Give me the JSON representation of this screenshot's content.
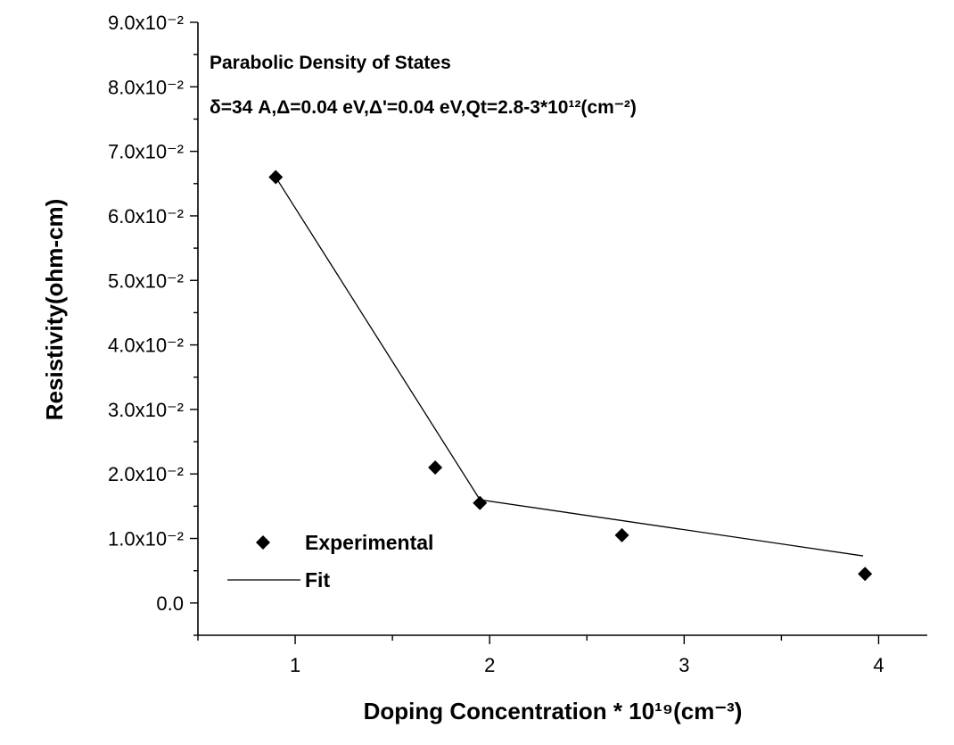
{
  "chart_data": {
    "type": "scatter",
    "annotations": [
      "Parabolic Density of States",
      "δ=34 A,Δ=0.04 eV,Δ'=0.04 eV,Qt=2.8-3*10¹²(cm⁻²)"
    ],
    "xlabel": "Doping Concentration * 10¹⁹(cm⁻³)",
    "ylabel": "Resistivity(ohm-cm)",
    "xlim": [
      0.5,
      4.25
    ],
    "ylim": [
      -0.005,
      0.09
    ],
    "x_ticks": [
      1,
      2,
      3,
      4
    ],
    "x_tick_labels": [
      "1",
      "2",
      "3",
      "4"
    ],
    "y_ticks": [
      0,
      0.01,
      0.02,
      0.03,
      0.04,
      0.05,
      0.06,
      0.07,
      0.08,
      0.09
    ],
    "y_tick_labels": [
      "0.0",
      "1.0x10⁻²",
      "2.0x10⁻²",
      "3.0x10⁻²",
      "4.0x10⁻²",
      "5.0x10⁻²",
      "6.0x10⁻²",
      "7.0x10⁻²",
      "8.0x10⁻²",
      "9.0x10⁻²"
    ],
    "grid": false,
    "legend": {
      "placement": "bottom-left"
    },
    "series": [
      {
        "name": "Experimental",
        "kind": "scatter",
        "marker": "diamond",
        "x": [
          0.9,
          1.72,
          1.95,
          2.68,
          3.93
        ],
        "y": [
          0.066,
          0.021,
          0.0155,
          0.0105,
          0.0045
        ]
      },
      {
        "name": "Fit",
        "kind": "line",
        "x": [
          0.9,
          1.95,
          3.92
        ],
        "y": [
          0.066,
          0.016,
          0.0073
        ]
      }
    ]
  }
}
